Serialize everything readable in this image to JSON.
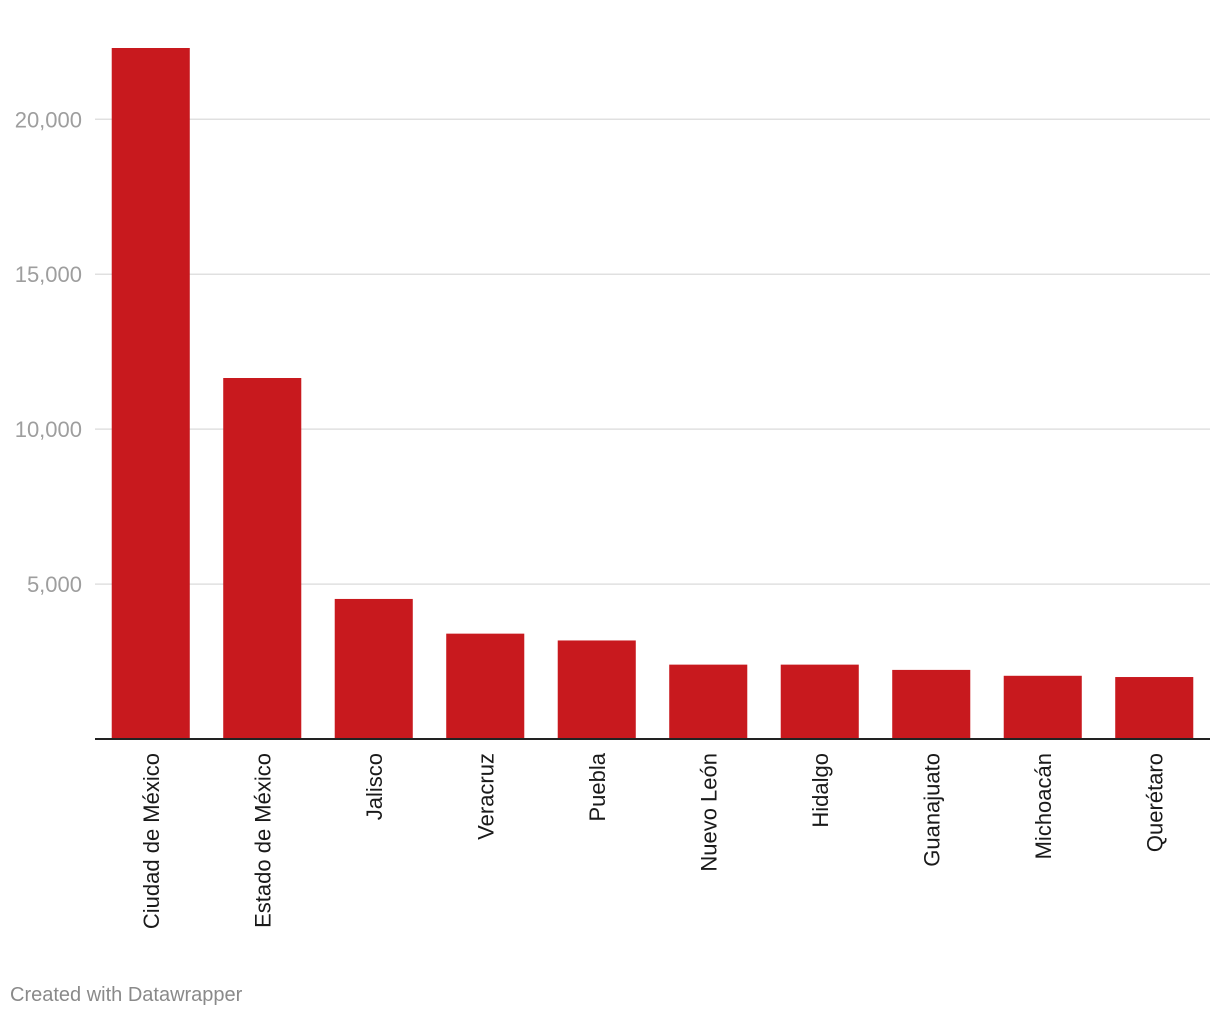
{
  "chart_data": {
    "type": "bar",
    "categories": [
      "Ciudad de México",
      "Estado de México",
      "Jalisco",
      "Veracruz",
      "Puebla",
      "Nuevo León",
      "Hidalgo",
      "Guanajuato",
      "Michoacán",
      "Querétaro"
    ],
    "values": [
      22300,
      11650,
      4520,
      3400,
      3180,
      2400,
      2400,
      2230,
      2040,
      2000
    ],
    "ylim": [
      0,
      22300
    ],
    "yticks": [
      5000,
      10000,
      15000,
      20000
    ],
    "ytick_labels": [
      "5,000",
      "10,000",
      "15,000",
      "20,000"
    ],
    "grid": true,
    "bar_color": "#c8191e"
  },
  "credit": "Created with Datawrapper"
}
